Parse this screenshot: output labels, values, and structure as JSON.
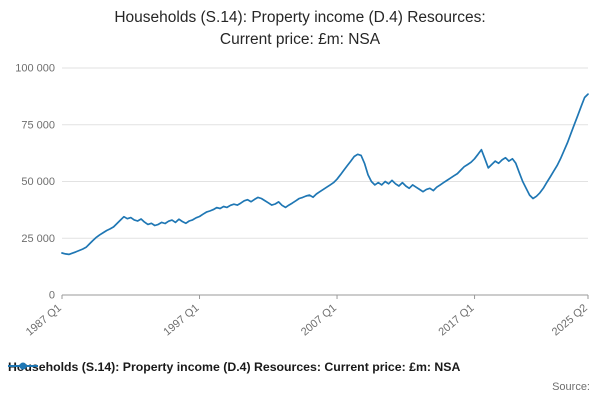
{
  "header": {
    "title_line1": "Households (S.14): Property income (D.4) Resources:",
    "title_line2": "Current price: £m: NSA"
  },
  "footer": {
    "source_label": "Source:"
  },
  "chart_data": {
    "type": "line",
    "title": "Households (S.14): Property income (D.4) Resources: Current price: £m: NSA",
    "xlabel": "",
    "ylabel": "",
    "ylim": [
      0,
      100000
    ],
    "grid": "horizontal",
    "legend_position": "bottom-left",
    "frequency": "quarterly",
    "x_start": "1987 Q1",
    "x_end": "2025 Q2",
    "yticks": [
      {
        "value": 0,
        "label": "0"
      },
      {
        "value": 25000,
        "label": "25 000"
      },
      {
        "value": 50000,
        "label": "50 000"
      },
      {
        "value": 75000,
        "label": "75 000"
      },
      {
        "value": 100000,
        "label": "100 000"
      }
    ],
    "xticks": [
      {
        "index": 0,
        "label": "1987 Q1"
      },
      {
        "index": 40,
        "label": "1997 Q1"
      },
      {
        "index": 80,
        "label": "2007 Q1"
      },
      {
        "index": 120,
        "label": "2017 Q1"
      },
      {
        "index": 153,
        "label": "2025 Q2"
      }
    ],
    "series": [
      {
        "name": "Households (S.14): Property income (D.4) Resources: Current price: £m: NSA",
        "color": "#1f77b4",
        "values": [
          18500,
          18100,
          17900,
          18400,
          19000,
          19600,
          20200,
          21000,
          22500,
          24000,
          25400,
          26500,
          27500,
          28400,
          29100,
          30000,
          31500,
          33000,
          34500,
          33600,
          34100,
          33100,
          32600,
          33500,
          32100,
          31100,
          31600,
          30600,
          31100,
          32000,
          31500,
          32500,
          33000,
          32000,
          33400,
          32400,
          31600,
          32600,
          33100,
          34000,
          34600,
          35600,
          36500,
          37000,
          37600,
          38500,
          38100,
          39000,
          38600,
          39500,
          40000,
          39600,
          40500,
          41500,
          42000,
          41100,
          42100,
          43000,
          42500,
          41600,
          40600,
          39600,
          40100,
          41000,
          39500,
          38600,
          39600,
          40500,
          41500,
          42500,
          43000,
          43600,
          44000,
          43100,
          44500,
          45500,
          46500,
          47500,
          48500,
          49500,
          51000,
          53000,
          55000,
          57000,
          59000,
          61000,
          62000,
          61500,
          58000,
          53000,
          50000,
          48500,
          49500,
          48500,
          50000,
          49000,
          50500,
          49000,
          48000,
          49500,
          48000,
          47000,
          48500,
          47500,
          46500,
          45500,
          46500,
          47000,
          46000,
          47500,
          48500,
          49500,
          50500,
          51500,
          52500,
          53500,
          55000,
          56500,
          57500,
          58500,
          60000,
          62000,
          64000,
          60000,
          56000,
          57500,
          59000,
          58000,
          59500,
          60500,
          59000,
          60000,
          58000,
          54000,
          50000,
          47000,
          44000,
          42500,
          43500,
          45000,
          47000,
          49500,
          52000,
          54500,
          57000,
          60000,
          63500,
          67000,
          71000,
          75000,
          79000,
          83000,
          87000,
          88500
        ]
      }
    ]
  }
}
